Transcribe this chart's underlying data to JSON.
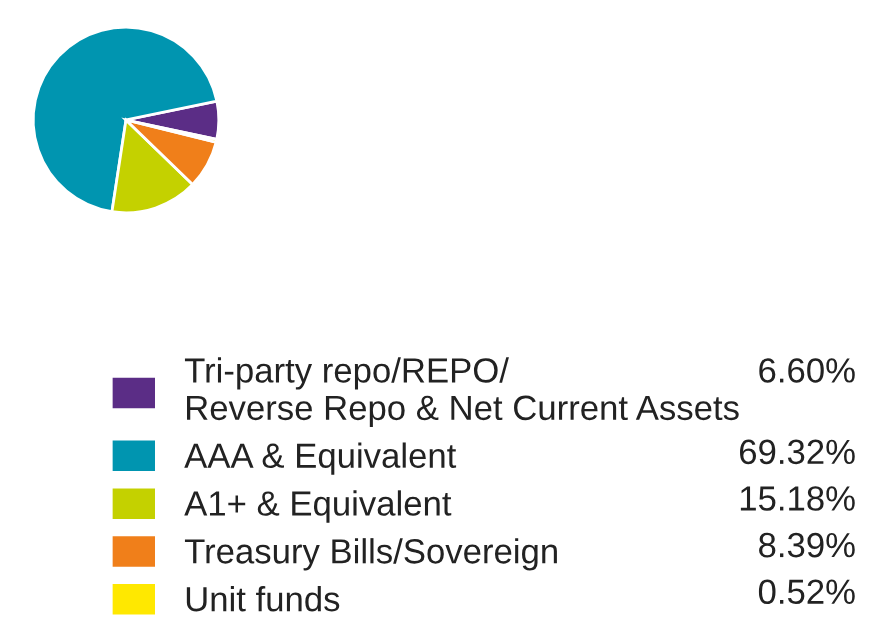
{
  "chart_data": {
    "type": "pie",
    "categories": [
      "Tri-party repo/REPO/\nReverse Repo & Net Current Assets",
      "AAA & Equivalent",
      "A1+ & Equivalent",
      "Treasury Bills/Sovereign",
      "Unit funds"
    ],
    "values": [
      6.6,
      69.32,
      15.18,
      8.39,
      0.52
    ],
    "colors": [
      "#5b2d86",
      "#0095b0",
      "#c4d100",
      "#f07f1a",
      "#ffe800"
    ],
    "value_labels": [
      "6.60%",
      "69.32%",
      "15.18%",
      "8.39%",
      "0.52%"
    ],
    "legend": "bottom"
  }
}
